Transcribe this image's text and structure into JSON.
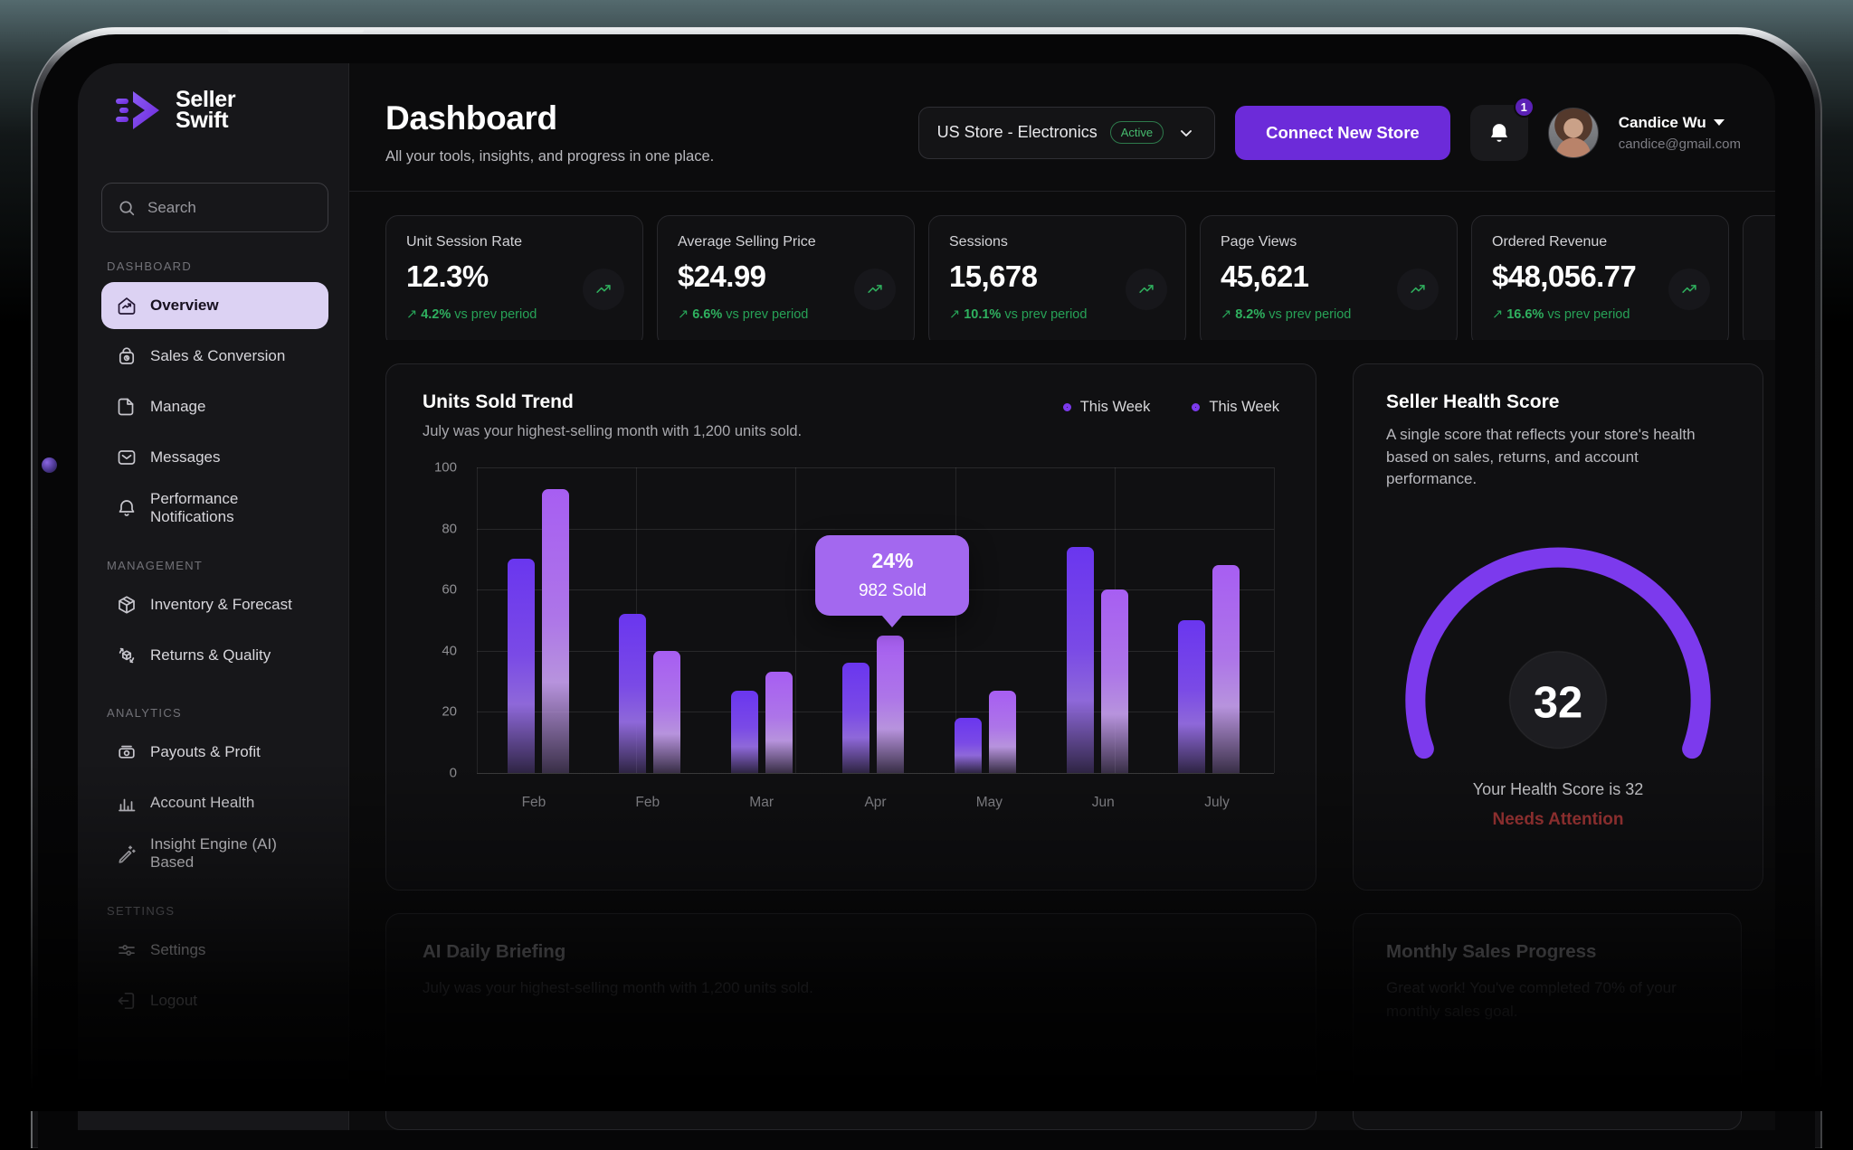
{
  "sidebar": {
    "logo": {
      "line1": "Seller",
      "line2": "Swift"
    },
    "search_placeholder": "Search",
    "sections": [
      {
        "label": "DASHBOARD",
        "items": [
          {
            "label": "Overview",
            "icon": "home-trend",
            "active": true
          },
          {
            "label": "Sales & Conversion",
            "icon": "bag",
            "active": false
          },
          {
            "label": "Manage",
            "icon": "file",
            "active": false
          },
          {
            "label": "Messages",
            "icon": "mail",
            "active": false
          },
          {
            "label": "Performance Notifications",
            "icon": "bell",
            "active": false
          }
        ]
      },
      {
        "label": "MANAGEMENT",
        "items": [
          {
            "label": "Inventory & Forecast",
            "icon": "box",
            "active": false
          },
          {
            "label": "Returns & Quality",
            "icon": "return-box",
            "active": false
          }
        ]
      },
      {
        "label": "ANALYTICS",
        "items": [
          {
            "label": "Payouts & Profit",
            "icon": "cash",
            "active": false
          },
          {
            "label": "Account Health",
            "icon": "bar-chart",
            "active": false
          },
          {
            "label": "Insight Engine (AI) Based",
            "icon": "wand",
            "active": false
          }
        ]
      },
      {
        "label": "SETTINGS",
        "items": [
          {
            "label": "Settings",
            "icon": "sliders",
            "active": false
          },
          {
            "label": "Logout",
            "icon": "logout",
            "active": false
          }
        ]
      }
    ]
  },
  "header": {
    "title": "Dashboard",
    "subtitle": "All your tools, insights, and progress in one place.",
    "store_selector": {
      "label": "US Store - Electronics",
      "badge": "Active"
    },
    "connect_button": "Connect New Store",
    "notifications_count": "1",
    "user": {
      "name": "Candice Wu",
      "email": "candice@gmail.com"
    }
  },
  "stats": [
    {
      "label": "Unit Session Rate",
      "value": "12.3%",
      "delta": "4.2%",
      "suffix": "vs prev period"
    },
    {
      "label": "Average Selling Price",
      "value": "$24.99",
      "delta": "6.6%",
      "suffix": "vs prev period"
    },
    {
      "label": "Sessions",
      "value": "15,678",
      "delta": "10.1%",
      "suffix": "vs prev period"
    },
    {
      "label": "Page Views",
      "value": "45,621",
      "delta": "8.2%",
      "suffix": "vs prev period"
    },
    {
      "label": "Ordered Revenue",
      "value": "$48,056.77",
      "delta": "16.6%",
      "suffix": "vs prev period"
    }
  ],
  "chart_data": {
    "type": "bar",
    "title": "Units Sold Trend",
    "subtitle": "July was your highest-selling month with 1,200 units sold.",
    "categories": [
      "Feb",
      "Feb",
      "Mar",
      "Apr",
      "May",
      "Jun",
      "July"
    ],
    "series": [
      {
        "name": "This Week",
        "color": "#6a36ef",
        "values": [
          70,
          52,
          27,
          36,
          18,
          74,
          50
        ]
      },
      {
        "name": "This Week",
        "color": "#a75ef2",
        "values": [
          93,
          40,
          33,
          45,
          27,
          60,
          68
        ]
      }
    ],
    "ylim": [
      0,
      100
    ],
    "yticks": [
      0,
      20,
      40,
      60,
      80,
      100
    ],
    "grid": true,
    "legend_position": "top-right",
    "tooltip": {
      "group_index": 3,
      "series_index": 1,
      "line1": "24%",
      "line2": "982 Sold"
    }
  },
  "health": {
    "title": "Seller Health Score",
    "description": "A single score that reflects your store's health based on sales, returns, and account performance.",
    "score": "32",
    "score_line": "Your Health Score is 32",
    "status": "Needs Attention",
    "status_color": "#a33636",
    "gauge_color": "#7c3aed"
  },
  "bottom_cards": [
    {
      "title": "AI Daily Briefing",
      "subtitle": "July was your highest-selling month with 1,200 units sold."
    },
    {
      "title": "Monthly Sales Progress",
      "subtitle": "Great work! You've completed 70% of your monthly sales goal."
    }
  ],
  "colors": {
    "accent_purple": "#6c2bd9",
    "positive_green": "#2fae5d",
    "tooltip_bg": "#a368ef",
    "active_badge_green": "#46bb6e"
  }
}
